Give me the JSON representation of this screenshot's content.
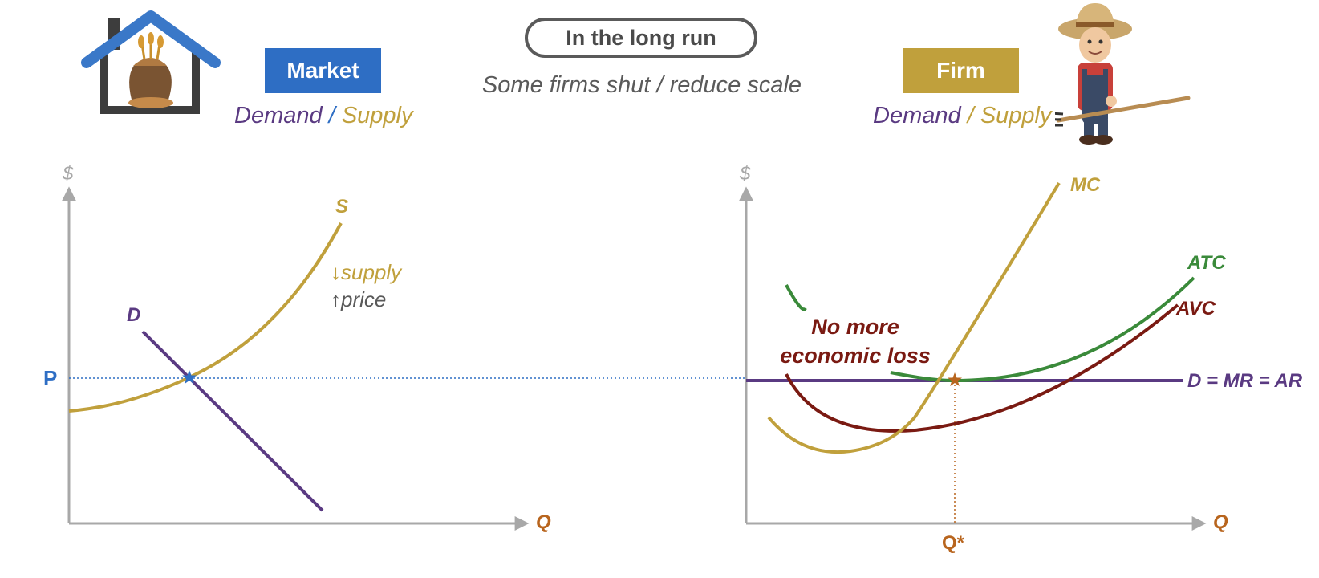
{
  "header": {
    "banner": "In the long run",
    "subtitle": "Some firms shut / reduce scale",
    "market_tag": "Market",
    "firm_tag": "Firm",
    "market_demand": "Demand",
    "market_sep": "/",
    "market_supply": "Supply",
    "firm_demand": "Demand",
    "firm_sep": "/",
    "firm_supply": "Supply"
  },
  "market_graph": {
    "y_axis_label": "$",
    "x_axis_label": "Q",
    "price_label": "P",
    "supply_label": "S",
    "demand_label": "D",
    "note_supply": "↓supply",
    "note_price": "↑price"
  },
  "firm_graph": {
    "y_axis_label": "$",
    "x_axis_label": "Q",
    "q_star_label": "Q*",
    "mc_label": "MC",
    "atc_label": "ATC",
    "avc_label": "AVC",
    "demand_label": "D = MR = AR",
    "loss_line1": "No more",
    "loss_line2": "economic loss"
  },
  "colors": {
    "supply": "#c0a03c",
    "demand": "#5a3a82",
    "atc": "#3a8a3a",
    "avc": "#7a1a12",
    "price": "#2e6ec4",
    "axis": "#a8a8a8",
    "q_label": "#b8651e"
  },
  "icons": {
    "market": "warehouse-grain-sack-icon",
    "firm": "farmer-with-pitchfork-icon"
  }
}
